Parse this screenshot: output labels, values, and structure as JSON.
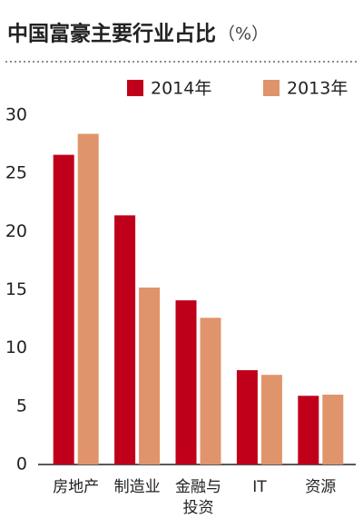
{
  "chart_data": {
    "type": "bar",
    "title": "中国富豪主要行业占比",
    "unit": "（%）",
    "categories": [
      "房地产",
      "制造业",
      "金融与投资",
      "IT",
      "资源"
    ],
    "series": [
      {
        "name": "2014年",
        "color": "#c0001a",
        "values": [
          26.6,
          21.4,
          14.1,
          8.1,
          5.9
        ]
      },
      {
        "name": "2013年",
        "color": "#e0946c",
        "values": [
          28.4,
          15.2,
          12.6,
          7.7,
          6.0
        ]
      }
    ],
    "ylim": [
      0,
      30
    ],
    "yticks": [
      0,
      5,
      10,
      15,
      20,
      25,
      30
    ],
    "grid": false
  }
}
